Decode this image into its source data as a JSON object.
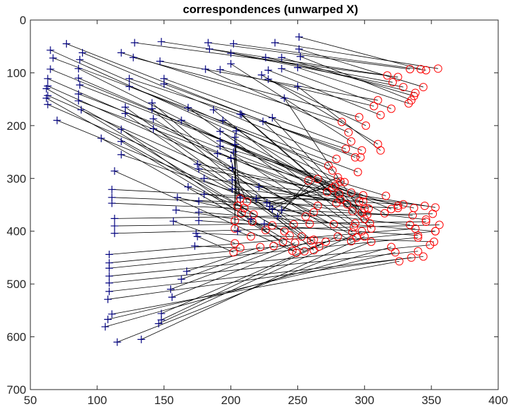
{
  "chart_data": {
    "type": "scatter",
    "title": "correspondences (unwarped X)",
    "xlabel": "",
    "ylabel": "",
    "xlim": [
      50,
      400
    ],
    "ylim": [
      0,
      700
    ],
    "y_reversed": true,
    "grid": false,
    "xticks": [
      50,
      100,
      150,
      200,
      250,
      300,
      350,
      400
    ],
    "yticks": [
      0,
      100,
      200,
      300,
      400,
      500,
      600,
      700
    ],
    "marker_colors": {
      "plus": "#00007f",
      "circle": "#ff0000",
      "line": "#000000"
    },
    "pairs": [
      [
        251,
        32,
        342,
        93
      ],
      [
        233,
        43,
        355,
        92
      ],
      [
        202,
        45,
        346,
        95
      ],
      [
        183,
        43,
        334,
        93
      ],
      [
        148,
        41,
        317,
        105
      ],
      [
        128,
        43,
        325,
        108
      ],
      [
        184,
        55,
        321,
        118
      ],
      [
        200,
        63,
        329,
        127
      ],
      [
        251,
        55,
        344,
        127
      ],
      [
        226,
        71,
        338,
        138
      ],
      [
        238,
        71,
        337,
        144
      ],
      [
        252,
        69,
        335,
        152
      ],
      [
        250,
        90,
        333,
        158
      ],
      [
        238,
        92,
        320,
        168
      ],
      [
        192,
        94,
        307,
        163
      ],
      [
        147,
        78,
        310,
        152
      ],
      [
        127,
        71,
        296,
        184
      ],
      [
        118,
        62,
        283,
        193
      ],
      [
        228,
        95,
        312,
        180
      ],
      [
        228,
        112,
        301,
        200
      ],
      [
        181,
        93,
        288,
        213
      ],
      [
        200,
        83,
        290,
        230
      ],
      [
        223,
        104,
        310,
        235
      ],
      [
        250,
        126,
        312,
        247
      ],
      [
        150,
        111,
        298,
        247
      ],
      [
        150,
        121,
        297,
        260
      ],
      [
        124,
        111,
        286,
        244
      ],
      [
        124,
        126,
        273,
        276
      ],
      [
        89,
        62,
        279,
        263
      ],
      [
        77,
        45,
        293,
        260
      ],
      [
        87,
        75,
        276,
        285
      ],
      [
        67,
        72,
        295,
        288
      ],
      [
        65,
        57,
        285,
        307
      ],
      [
        65,
        93,
        290,
        327
      ],
      [
        86,
        92,
        272,
        326
      ],
      [
        86,
        110,
        276,
        318
      ],
      [
        87,
        123,
        299,
        332
      ],
      [
        86,
        140,
        296,
        344
      ],
      [
        86,
        153,
        300,
        357
      ],
      [
        63,
        111,
        279,
        347
      ],
      [
        63,
        125,
        265,
        352
      ],
      [
        63,
        143,
        262,
        364
      ],
      [
        63,
        160,
        256,
        372
      ],
      [
        70,
        190,
        259,
        386
      ],
      [
        62,
        130,
        247,
        387
      ],
      [
        62,
        148,
        240,
        400
      ],
      [
        88,
        170,
        244,
        408
      ],
      [
        103,
        224,
        239,
        420
      ],
      [
        113,
        286,
        246,
        437
      ],
      [
        118,
        207,
        249,
        441
      ],
      [
        118,
        230,
        255,
        438
      ],
      [
        118,
        255,
        277,
        387
      ],
      [
        121,
        177,
        253,
        410
      ],
      [
        121,
        165,
        260,
        418
      ],
      [
        141,
        157,
        266,
        429
      ],
      [
        141,
        168,
        262,
        436
      ],
      [
        142,
        187,
        290,
        419
      ],
      [
        142,
        206,
        294,
        412
      ],
      [
        163,
        190,
        291,
        402
      ],
      [
        168,
        166,
        292,
        392
      ],
      [
        187,
        170,
        293,
        385
      ],
      [
        194,
        190,
        302,
        369
      ],
      [
        192,
        211,
        315,
        366
      ],
      [
        192,
        229,
        320,
        358
      ],
      [
        192,
        239,
        316,
        333
      ],
      [
        190,
        253,
        325,
        352
      ],
      [
        175,
        273,
        337,
        356
      ],
      [
        176,
        282,
        353,
        355
      ],
      [
        180,
        300,
        345,
        352
      ],
      [
        180,
        330,
        346,
        378
      ],
      [
        176,
        343,
        334,
        388
      ],
      [
        176,
        364,
        353,
        400
      ],
      [
        176,
        380,
        340,
        408
      ],
      [
        174,
        404,
        352,
        420
      ],
      [
        207,
        178,
        305,
        395
      ],
      [
        231,
        185,
        304,
        385
      ],
      [
        224,
        192,
        300,
        377
      ],
      [
        240,
        148,
        298,
        365
      ],
      [
        208,
        179,
        291,
        362
      ],
      [
        201,
        303,
        303,
        357
      ],
      [
        201,
        320,
        299,
        344
      ],
      [
        221,
        316,
        287,
        349
      ],
      [
        207,
        336,
        282,
        340
      ],
      [
        219,
        338,
        281,
        329
      ],
      [
        227,
        346,
        278,
        314
      ],
      [
        229,
        353,
        282,
        306
      ],
      [
        231,
        358,
        280,
        298
      ],
      [
        238,
        360,
        265,
        301
      ],
      [
        235,
        372,
        258,
        304
      ],
      [
        111,
        321,
        329,
        349
      ],
      [
        111,
        336,
        325,
        356
      ],
      [
        111,
        347,
        336,
        370
      ],
      [
        113,
        376,
        351,
        367
      ],
      [
        113,
        390,
        346,
        382
      ],
      [
        113,
        404,
        356,
        388
      ],
      [
        109,
        444,
        338,
        395
      ],
      [
        109,
        460,
        353,
        400
      ],
      [
        109,
        470,
        340,
        412
      ],
      [
        109,
        485,
        349,
        426
      ],
      [
        109,
        498,
        340,
        438
      ],
      [
        109,
        514,
        344,
        448
      ],
      [
        108,
        529,
        335,
        450
      ],
      [
        111,
        557,
        326,
        457
      ],
      [
        108,
        567,
        323,
        440
      ],
      [
        106,
        581,
        320,
        430
      ],
      [
        115,
        610,
        305,
        420
      ],
      [
        133,
        605,
        300,
        410
      ],
      [
        146,
        575,
        298,
        400
      ],
      [
        148,
        568,
        280,
        410
      ],
      [
        148,
        556,
        271,
        420
      ],
      [
        156,
        525,
        262,
        416
      ],
      [
        155,
        510,
        248,
        422
      ],
      [
        163,
        491,
        232,
        428
      ],
      [
        167,
        476,
        222,
        430
      ],
      [
        173,
        428,
        207,
        432
      ],
      [
        175,
        410,
        202,
        440
      ],
      [
        157,
        381,
        203,
        423
      ],
      [
        159,
        360,
        216,
        382
      ],
      [
        160,
        336,
        217,
        368
      ],
      [
        168,
        316,
        210,
        356
      ],
      [
        201,
        280,
        212,
        344
      ],
      [
        200,
        262,
        207,
        338
      ],
      [
        202,
        250,
        205,
        352
      ],
      [
        203,
        236,
        208,
        366
      ],
      [
        203,
        222,
        203,
        380
      ],
      [
        204,
        210,
        203,
        395
      ],
      [
        205,
        400,
        215,
        410
      ],
      [
        215,
        377,
        226,
        398
      ],
      [
        225,
        386,
        231,
        389
      ]
    ]
  }
}
